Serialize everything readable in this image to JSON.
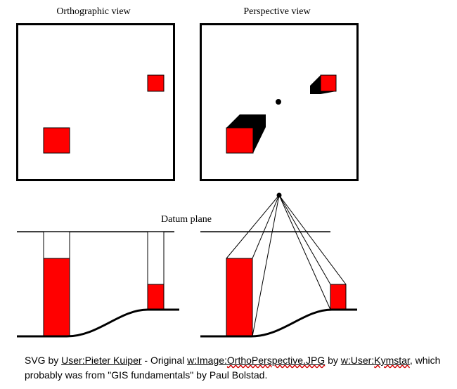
{
  "labels": {
    "ortho_title": "Orthographic view",
    "persp_title": "Perspective view",
    "datum_plane": "Datum plane"
  },
  "colors": {
    "block_fill": "#ff0000",
    "shadow": "#000000",
    "stroke": "#000000",
    "background": "#ffffff"
  },
  "caption": {
    "part1": "SVG by ",
    "link1": "User:Pieter Kuiper",
    "part2": " - Original ",
    "link2_prefix": "w:Image:",
    "link2_rest": "OrthoPerspective.JPG",
    "part3": " by ",
    "link3_prefix": "w:User:",
    "link3_rest": "Kymstar",
    "part4": ", which probably was from \"GIS fundamentals\" by Paul Bolstad."
  }
}
